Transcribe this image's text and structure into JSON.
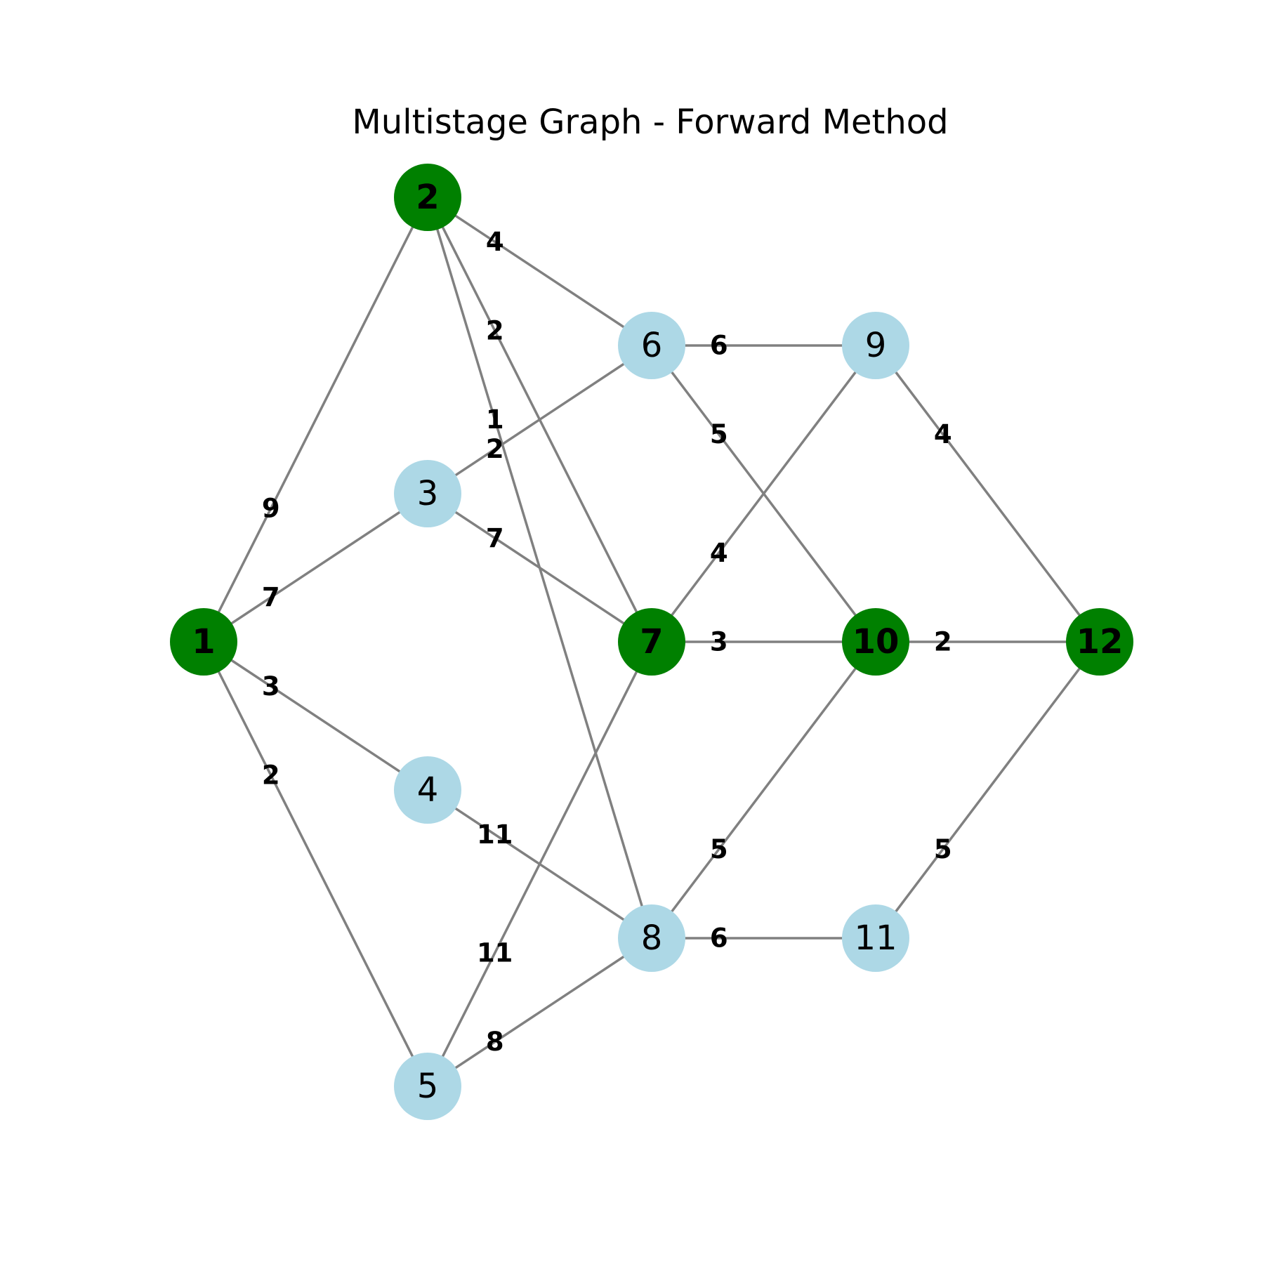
{
  "title": "Multistage Graph - Forward Method",
  "colors": {
    "path_node": "#008000",
    "other_node": "#add8e6",
    "edge": "#808080",
    "label": "#000000"
  },
  "graph": {
    "nodes": [
      {
        "id": "1",
        "stage": 1,
        "on_path": true
      },
      {
        "id": "2",
        "stage": 2,
        "on_path": true
      },
      {
        "id": "3",
        "stage": 2,
        "on_path": false
      },
      {
        "id": "4",
        "stage": 2,
        "on_path": false
      },
      {
        "id": "5",
        "stage": 2,
        "on_path": false
      },
      {
        "id": "6",
        "stage": 3,
        "on_path": false
      },
      {
        "id": "7",
        "stage": 3,
        "on_path": true
      },
      {
        "id": "8",
        "stage": 3,
        "on_path": false
      },
      {
        "id": "9",
        "stage": 4,
        "on_path": false
      },
      {
        "id": "10",
        "stage": 4,
        "on_path": true
      },
      {
        "id": "11",
        "stage": 4,
        "on_path": false
      },
      {
        "id": "12",
        "stage": 5,
        "on_path": true
      }
    ],
    "edges": [
      {
        "from": "1",
        "to": "2",
        "weight": "9"
      },
      {
        "from": "1",
        "to": "3",
        "weight": "7"
      },
      {
        "from": "1",
        "to": "4",
        "weight": "3"
      },
      {
        "from": "1",
        "to": "5",
        "weight": "2"
      },
      {
        "from": "2",
        "to": "6",
        "weight": "4"
      },
      {
        "from": "2",
        "to": "7",
        "weight": "2"
      },
      {
        "from": "2",
        "to": "8",
        "weight": "1"
      },
      {
        "from": "3",
        "to": "6",
        "weight": "2"
      },
      {
        "from": "3",
        "to": "7",
        "weight": "7"
      },
      {
        "from": "4",
        "to": "8",
        "weight": "11"
      },
      {
        "from": "5",
        "to": "7",
        "weight": "11"
      },
      {
        "from": "5",
        "to": "8",
        "weight": "8"
      },
      {
        "from": "6",
        "to": "9",
        "weight": "6"
      },
      {
        "from": "6",
        "to": "10",
        "weight": "5"
      },
      {
        "from": "7",
        "to": "9",
        "weight": "4"
      },
      {
        "from": "7",
        "to": "10",
        "weight": "3"
      },
      {
        "from": "8",
        "to": "10",
        "weight": "5"
      },
      {
        "from": "8",
        "to": "11",
        "weight": "6"
      },
      {
        "from": "9",
        "to": "12",
        "weight": "4"
      },
      {
        "from": "10",
        "to": "12",
        "weight": "2"
      },
      {
        "from": "11",
        "to": "12",
        "weight": "5"
      }
    ]
  }
}
